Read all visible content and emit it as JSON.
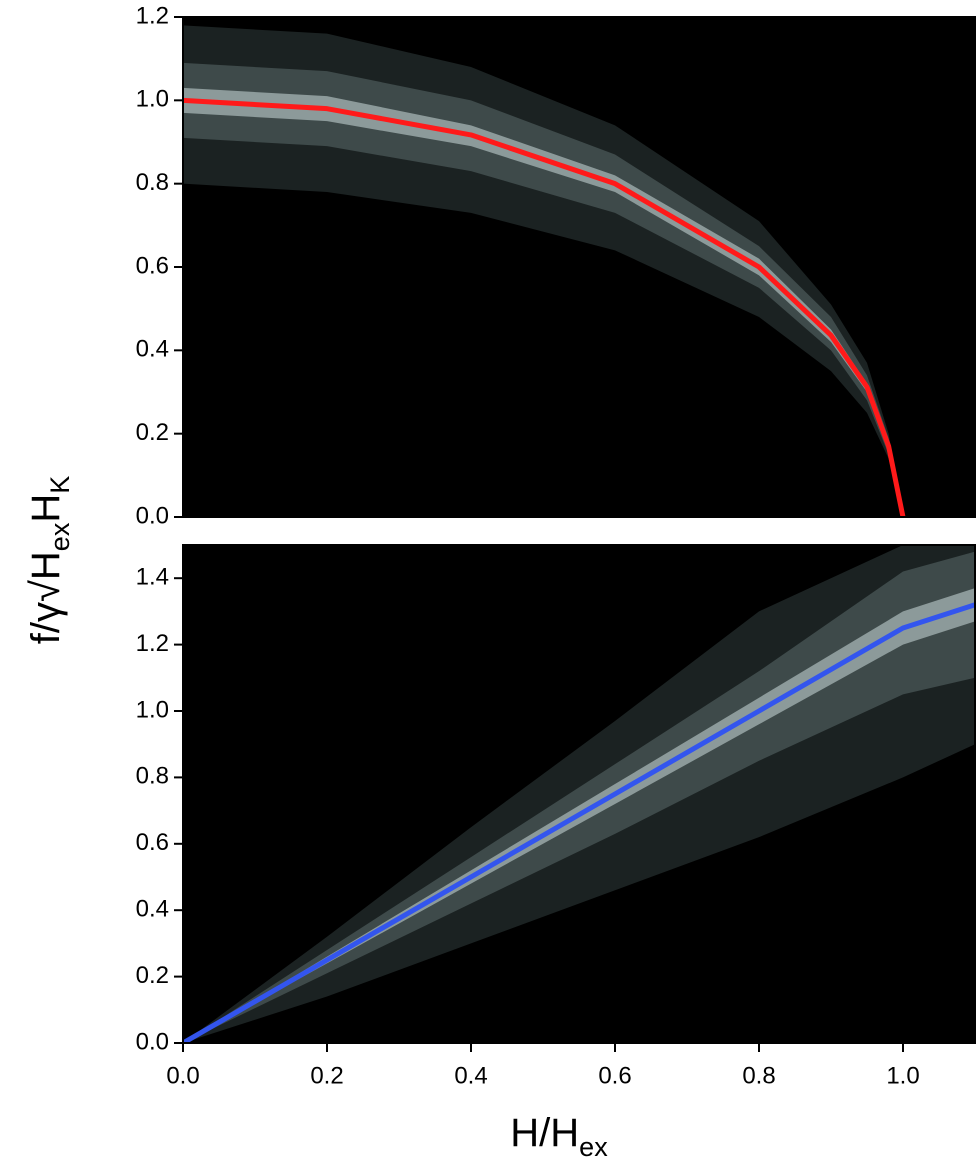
{
  "ylabel": [
    {
      "text": "f/γ√H"
    },
    {
      "text": "ex",
      "sub": true
    },
    {
      "text": "H"
    },
    {
      "text": "K",
      "sub": true
    }
  ],
  "chart_data": [
    {
      "type": "line",
      "x": [
        0,
        0.2,
        0.4,
        0.6,
        0.8,
        0.9,
        0.95,
        0.98,
        1.0
      ],
      "series": [
        {
          "color": "#ff1a1a",
          "values": [
            1.0,
            0.98,
            0.917,
            0.8,
            0.6,
            0.436,
            0.312,
            0.17,
            0.0
          ]
        }
      ],
      "bands": [
        {
          "color": "#1b2222",
          "upper": [
            1.18,
            1.16,
            1.08,
            0.94,
            0.71,
            0.51,
            0.37,
            0.2,
            0
          ],
          "lower": [
            0.8,
            0.78,
            0.73,
            0.64,
            0.48,
            0.35,
            0.25,
            0.14,
            0
          ]
        },
        {
          "color": "#3e4a4a",
          "upper": [
            1.09,
            1.07,
            1.0,
            0.87,
            0.65,
            0.48,
            0.34,
            0.19,
            0
          ],
          "lower": [
            0.91,
            0.89,
            0.83,
            0.73,
            0.55,
            0.4,
            0.28,
            0.15,
            0
          ]
        },
        {
          "color": "#8c9a9a",
          "upper": [
            1.03,
            1.01,
            0.94,
            0.82,
            0.62,
            0.45,
            0.32,
            0.18,
            0
          ],
          "lower": [
            0.97,
            0.95,
            0.89,
            0.78,
            0.58,
            0.42,
            0.3,
            0.16,
            0
          ]
        }
      ],
      "xlim": [
        0,
        1.1
      ],
      "ylim": [
        0,
        1.2
      ],
      "yticks": [
        {
          "value": 0,
          "label": "0.0"
        },
        {
          "value": 0.2,
          "label": "0.2"
        },
        {
          "value": 0.4,
          "label": "0.4"
        },
        {
          "value": 0.6,
          "label": "0.6"
        },
        {
          "value": 0.8,
          "label": "0.8"
        },
        {
          "value": 1.0,
          "label": "1.0"
        },
        {
          "value": 1.2,
          "label": "1.2"
        }
      ]
    },
    {
      "type": "line",
      "x": [
        0,
        0.2,
        0.4,
        0.6,
        0.8,
        1.0,
        1.1
      ],
      "series": [
        {
          "color": "#3355ee",
          "values": [
            0,
            0.25,
            0.5,
            0.75,
            1.0,
            1.25,
            1.32
          ]
        }
      ],
      "bands": [
        {
          "color": "#1b2222",
          "upper": [
            0,
            0.32,
            0.65,
            0.97,
            1.3,
            1.5,
            1.5
          ],
          "lower": [
            0,
            0.14,
            0.3,
            0.46,
            0.62,
            0.8,
            0.9
          ]
        },
        {
          "color": "#3e4a4a",
          "upper": [
            0,
            0.28,
            0.56,
            0.84,
            1.12,
            1.42,
            1.48
          ],
          "lower": [
            0,
            0.21,
            0.42,
            0.63,
            0.85,
            1.05,
            1.1
          ]
        },
        {
          "color": "#8c9a9a",
          "upper": [
            0,
            0.26,
            0.52,
            0.78,
            1.04,
            1.3,
            1.37
          ],
          "lower": [
            0,
            0.24,
            0.48,
            0.72,
            0.96,
            1.2,
            1.27
          ]
        }
      ],
      "xlim": [
        0,
        1.1
      ],
      "ylim": [
        0,
        1.5
      ],
      "xticks": [
        {
          "value": 0,
          "label": "0.0"
        },
        {
          "value": 0.2,
          "label": "0.2"
        },
        {
          "value": 0.4,
          "label": "0.4"
        },
        {
          "value": 0.6,
          "label": "0.6"
        },
        {
          "value": 0.8,
          "label": "0.8"
        },
        {
          "value": 1.0,
          "label": "1.0"
        }
      ],
      "yticks": [
        {
          "value": 0,
          "label": "0.0"
        },
        {
          "value": 0.2,
          "label": "0.2"
        },
        {
          "value": 0.4,
          "label": "0.4"
        },
        {
          "value": 0.6,
          "label": "0.6"
        },
        {
          "value": 0.8,
          "label": "0.8"
        },
        {
          "value": 1.0,
          "label": "1.0"
        },
        {
          "value": 1.2,
          "label": "1.2"
        },
        {
          "value": 1.4,
          "label": "1.4"
        }
      ],
      "xlabel": [
        {
          "text": "H/H"
        },
        {
          "text": "ex",
          "sub": true
        }
      ]
    }
  ]
}
